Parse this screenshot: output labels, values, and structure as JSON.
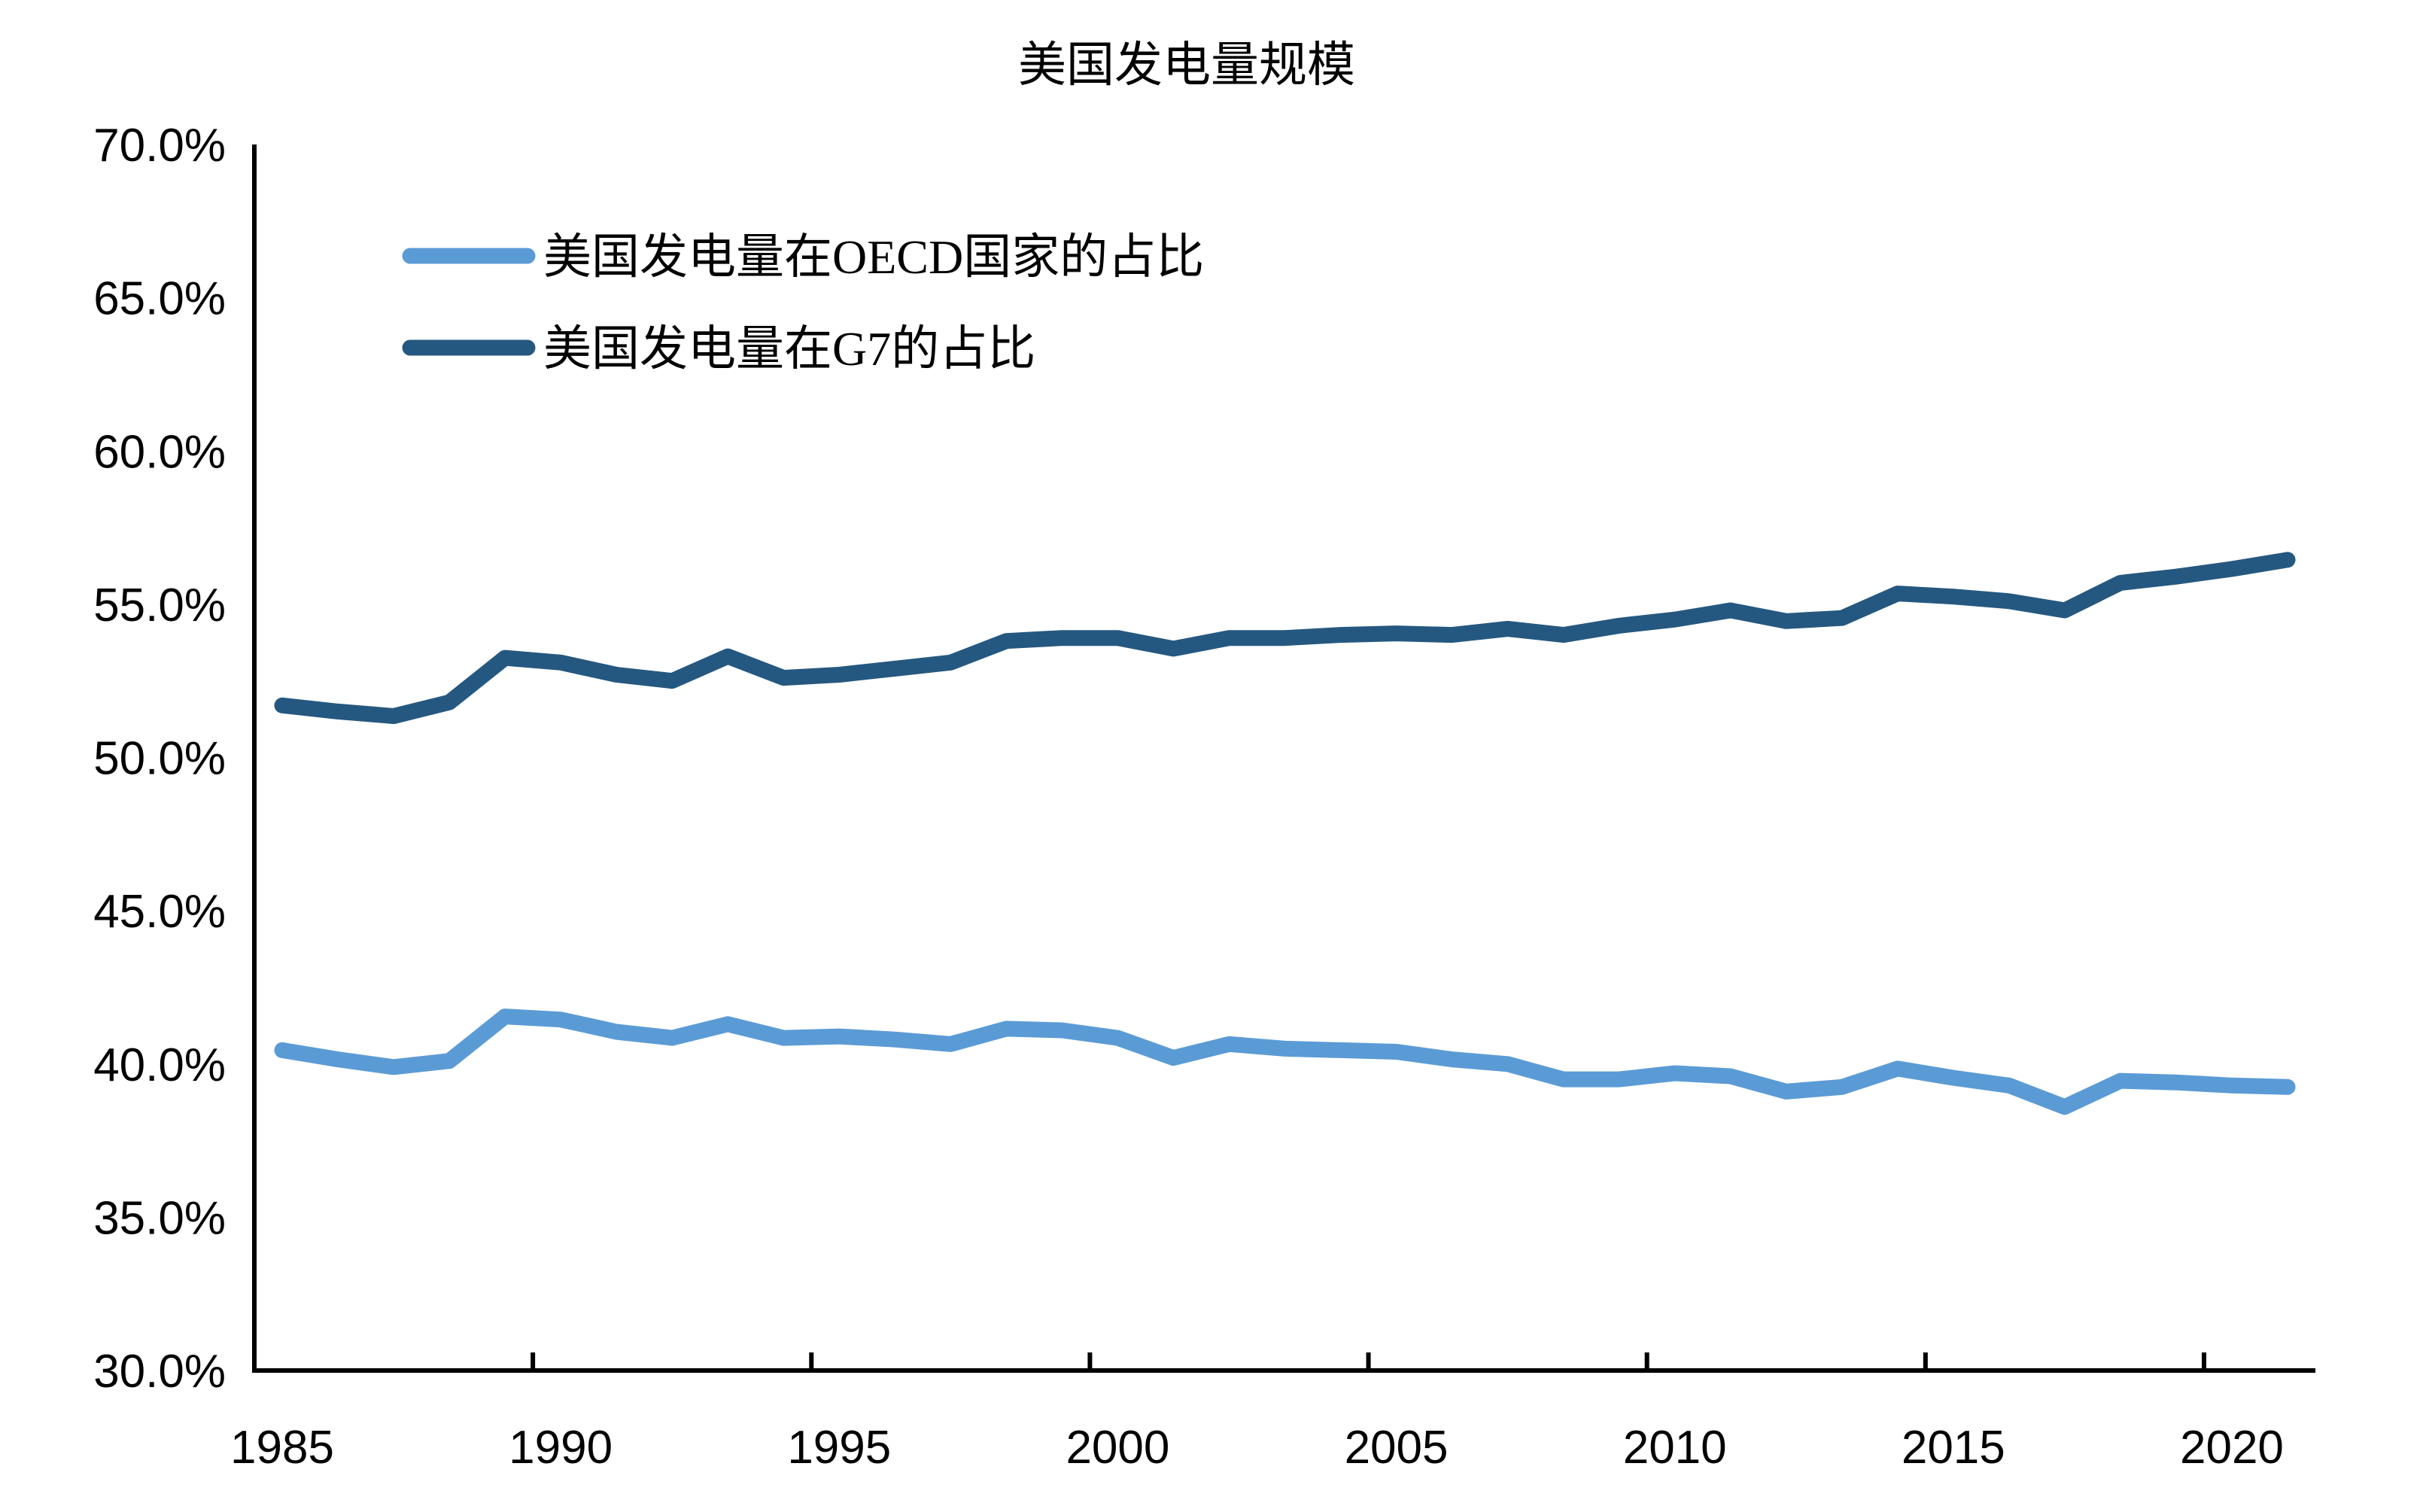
{
  "title": "美国发电量规模",
  "colors": {
    "oecd_line": "#5B9BD5",
    "g7_line": "#255880",
    "axis": "#000000",
    "background": "#FFFFFF"
  },
  "legend": {
    "items": [
      {
        "label": "美国发电量在OECD国家的占比",
        "color": "#5B9BD5"
      },
      {
        "label": "美国发电量在G7的占比",
        "color": "#255880"
      }
    ],
    "position": "top-left-inside"
  },
  "axes": {
    "y_tick_labels": [
      "70.0%",
      "65.0%",
      "60.0%",
      "55.0%",
      "50.0%",
      "45.0%",
      "40.0%",
      "35.0%",
      "30.0%"
    ],
    "y_tick_values": [
      70,
      65,
      60,
      55,
      50,
      45,
      40,
      35,
      30
    ],
    "x_tick_labels": [
      "1985",
      "1990",
      "1995",
      "2000",
      "2005",
      "2010",
      "2015",
      "2020"
    ],
    "x_label_years": [
      1985,
      1990,
      1995,
      2000,
      2005,
      2010,
      2015,
      2020
    ]
  },
  "chart_data": {
    "type": "line",
    "title": "美国发电量规模",
    "xlabel": "",
    "ylabel": "",
    "ylim": [
      30,
      70
    ],
    "y_tick_step": 5,
    "grid": false,
    "legend_position": "top-left-inside",
    "x": [
      1985,
      1986,
      1987,
      1988,
      1989,
      1990,
      1991,
      1992,
      1993,
      1994,
      1995,
      1996,
      1997,
      1998,
      1999,
      2000,
      2001,
      2002,
      2003,
      2004,
      2005,
      2006,
      2007,
      2008,
      2009,
      2010,
      2011,
      2012,
      2013,
      2014,
      2015,
      2016,
      2017,
      2018,
      2019,
      2020,
      2021
    ],
    "unit": "percent",
    "series": [
      {
        "name": "美国发电量在OECD国家的占比",
        "color": "#5B9BD5",
        "values": [
          40.45,
          40.15,
          39.9,
          40.1,
          41.55,
          41.45,
          41.05,
          40.85,
          41.3,
          40.85,
          40.9,
          40.8,
          40.65,
          41.15,
          41.1,
          40.85,
          40.2,
          40.65,
          40.5,
          40.45,
          40.4,
          40.15,
          40.0,
          39.5,
          39.5,
          39.7,
          39.6,
          39.1,
          39.25,
          39.85,
          39.55,
          39.3,
          38.6,
          39.45,
          39.4,
          39.3,
          39.25
        ]
      },
      {
        "name": "美国发电量在G7的占比",
        "color": "#255880",
        "values": [
          51.7,
          51.5,
          51.35,
          51.8,
          53.25,
          53.1,
          52.7,
          52.5,
          53.3,
          52.6,
          52.7,
          52.9,
          53.1,
          53.8,
          53.9,
          53.9,
          53.55,
          53.9,
          53.9,
          54.0,
          54.05,
          54.0,
          54.2,
          54.0,
          54.3,
          54.5,
          54.8,
          54.45,
          54.55,
          55.35,
          55.25,
          55.1,
          54.8,
          55.7,
          55.9,
          56.15,
          56.45
        ]
      }
    ]
  }
}
